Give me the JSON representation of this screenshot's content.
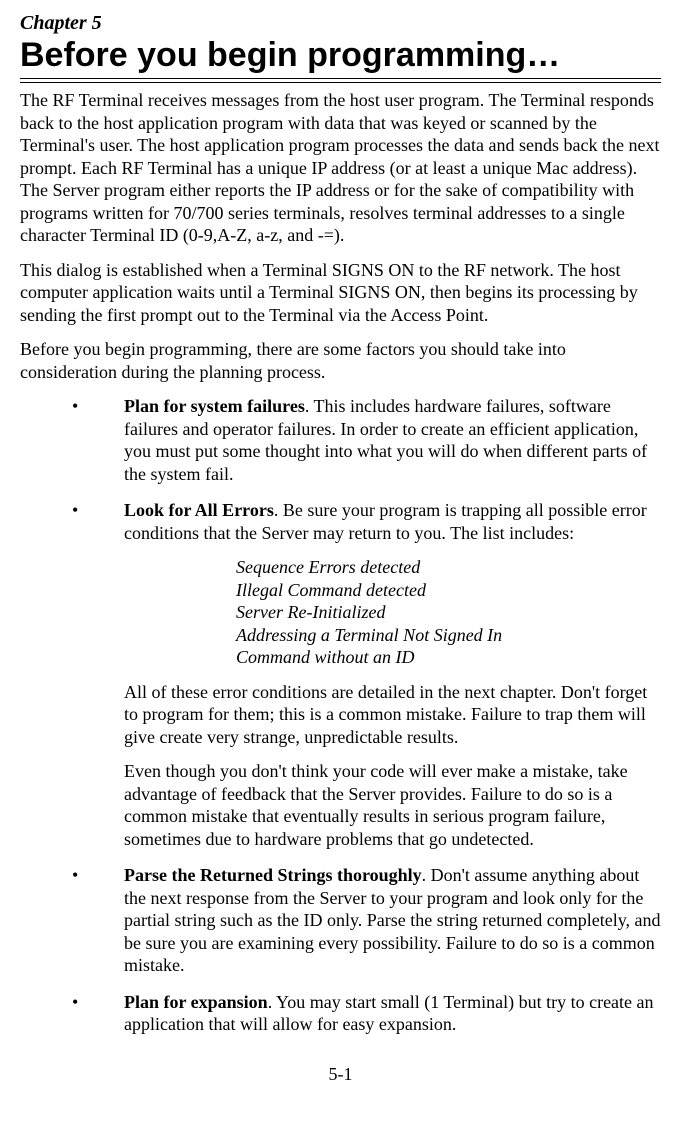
{
  "chapter_label": "Chapter 5",
  "chapter_title": "Before you begin programming…",
  "para1": "The RF Terminal receives messages from the host user program. The Terminal responds back to the host application program with data that was keyed or scanned by the Terminal's user. The host application program processes the data and sends back the next prompt.  Each RF Terminal has a unique IP address (or at least a unique Mac address). The Server program either reports the IP address or for the sake of compatibility with programs written for 70/700 series terminals, resolves terminal addresses to a single character Terminal ID (0-9,A-Z, a-z, and -=).",
  "para2": "This dialog is established when a Terminal SIGNS ON to the RF network.  The host computer application waits until a Terminal SIGNS ON, then begins its processing by sending the first prompt out to the Terminal via the Access Point.",
  "para3": "Before you begin programming, there are some factors you should take into consideration during the planning process.",
  "bullets": [
    {
      "lead": "Plan for system failures",
      "rest": ".  This includes hardware failures, software failures and operator failures.  In order to create an efficient application, you must put some thought into what you will do when different parts of the system fail."
    },
    {
      "lead": "Look for All Errors",
      "rest": ". Be sure your program is trapping all possible error conditions that the Server may return to you.  The list includes:",
      "errors": [
        "Sequence Errors detected",
        "Illegal Command detected",
        "Server Re-Initialized",
        "Addressing a Terminal Not Signed In",
        "Command without an ID"
      ],
      "after1": "All of these error conditions are detailed in the next chapter. Don't forget to program for them; this is a common mistake. Failure to trap them will give create very strange, unpredictable results.",
      "after2": "Even though you don't think your code will ever make a mistake, take advantage of feedback that the Server provides. Failure to do so is a common mistake that eventually results in serious program failure, sometimes due to hardware problems that go undetected."
    },
    {
      "lead": "Parse the Returned Strings thoroughly",
      "rest": ". Don't assume anything about the next response from the Server to your program and look only for the partial string such as the ID only. Parse the string returned completely, and be sure you are examining every possibility. Failure to do so is a common mistake."
    },
    {
      "lead": "Plan for expansion",
      "rest": ". You may start small (1 Terminal) but try to create an application that will allow for easy expansion."
    }
  ],
  "page_number": "5-1",
  "bullet_char": "•"
}
